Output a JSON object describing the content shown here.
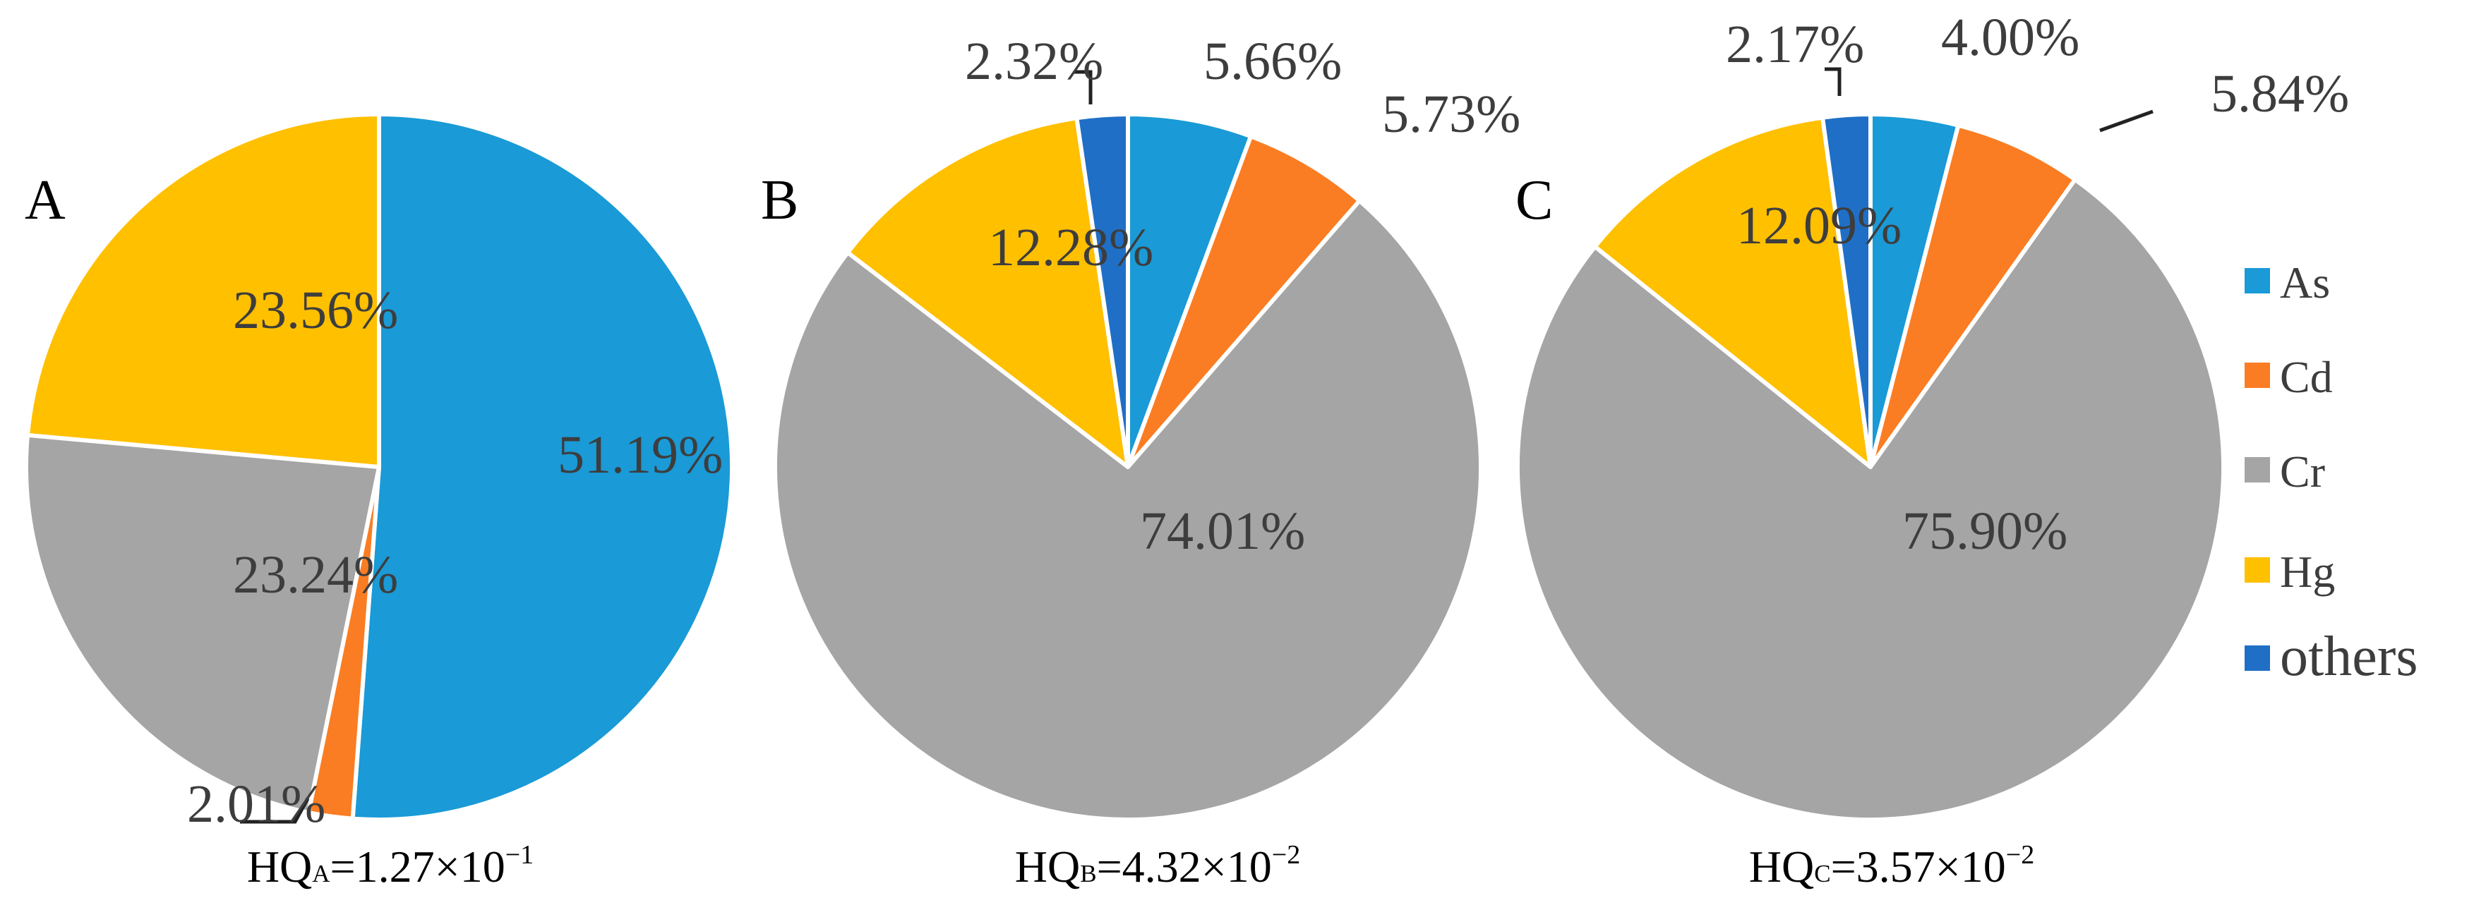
{
  "figure": {
    "colors": {
      "As": "#1a9ad6",
      "Cd": "#fa7d23",
      "Cr": "#a5a5a5",
      "Hg": "#ffc000",
      "others": "#1f6fc6"
    }
  },
  "legend": {
    "items": [
      {
        "key": "As",
        "label": "As"
      },
      {
        "key": "Cd",
        "label": "Cd"
      },
      {
        "key": "Cr",
        "label": "Cr"
      },
      {
        "key": "Hg",
        "label": "Hg"
      },
      {
        "key": "others",
        "label": "others"
      }
    ]
  },
  "chart_data": [
    {
      "type": "pie",
      "panel": "A",
      "categories": [
        "As",
        "Cd",
        "Cr",
        "Hg",
        "others"
      ],
      "values": [
        51.19,
        2.01,
        23.24,
        23.56,
        0
      ],
      "labels": [
        "51.19%",
        "2.01%",
        "23.24%",
        "23.56%",
        ""
      ],
      "caption": {
        "prefix": "HQ",
        "subscript": "A",
        "value": "=1.27×10",
        "exponent": "−1"
      }
    },
    {
      "type": "pie",
      "panel": "B",
      "categories": [
        "As",
        "Cd",
        "Cr",
        "Hg",
        "others"
      ],
      "values": [
        5.66,
        5.73,
        74.01,
        12.28,
        2.32
      ],
      "labels": [
        "5.66%",
        "5.73%",
        "74.01%",
        "12.28%",
        "2.32%"
      ],
      "caption": {
        "prefix": "HQ",
        "subscript": "B",
        "value": "=4.32×10",
        "exponent": "−2"
      }
    },
    {
      "type": "pie",
      "panel": "C",
      "categories": [
        "As",
        "Cd",
        "Cr",
        "Hg",
        "others"
      ],
      "values": [
        4.0,
        5.84,
        75.9,
        12.09,
        2.17
      ],
      "labels": [
        "4.00%",
        "5.84%",
        "75.90%",
        "12.09%",
        "2.17%"
      ],
      "caption": {
        "prefix": "HQ",
        "subscript": "C",
        "value": "=3.57×10",
        "exponent": "−2"
      }
    }
  ]
}
